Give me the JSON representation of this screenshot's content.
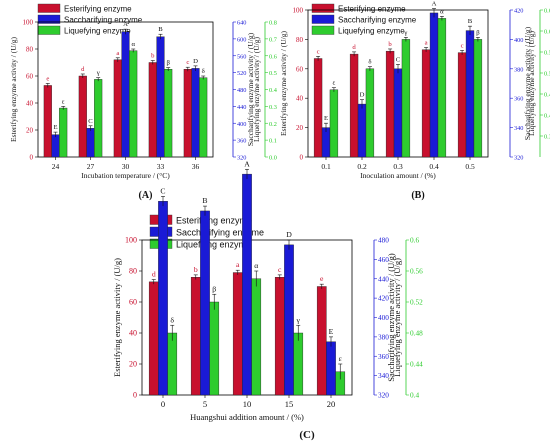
{
  "panels": [
    {
      "id": "A",
      "label": "(A)",
      "xlabel": "Incubation temperature / (°C)",
      "ylabel_left": "Esterifying enzyme activity / (U/g)",
      "ylabel_mid": "Saccharifying enzyme activity / (U/g)",
      "ylabel_right": "Liquefying enzyme activity / (U/g)"
    },
    {
      "id": "B",
      "label": "(B)",
      "xlabel": "Inoculation amount / (%)",
      "ylabel_left": "Esterifying enzyme activity / (U/g)",
      "ylabel_mid": "Saccharifying enzyme activity / (U/g)",
      "ylabel_right": "Liquefying enzyme activity / (U/g)"
    },
    {
      "id": "C",
      "label": "(C)",
      "xlabel": "Huangshui addition amount / (%)",
      "ylabel_left": "Esterifying enzyme activity / (U/g)",
      "ylabel_mid": "Saccharifying enzyme activity / (U/g)",
      "ylabel_right": "Liquefying enzyme activity / (U/g)"
    }
  ],
  "colors": {
    "esterifying": "#c8102e",
    "saccharifying": "#1a1ad6",
    "liquefying": "#2ecc2e",
    "axis_left": "#c8102e",
    "axis_mid": "#1a1ad6",
    "axis_right": "#2ecc2e"
  },
  "chart_data": [
    {
      "type": "bar",
      "panel": "A",
      "categories": [
        "24",
        "27",
        "30",
        "33",
        "36"
      ],
      "legend": [
        "Esterifying enzyme",
        "Saccharifying enzyme",
        "Liquefying enzyme"
      ],
      "series": [
        {
          "name": "Esterifying enzyme",
          "axis": "left",
          "values": [
            53,
            60,
            72,
            70,
            65
          ],
          "errors": [
            1.5,
            1.5,
            1.5,
            1.5,
            1.5
          ],
          "letters": [
            "e",
            "d",
            "a",
            "b",
            "c"
          ]
        },
        {
          "name": "Saccharifying enzyme",
          "axis": "mid",
          "values": [
            373,
            388,
            617,
            605,
            530
          ],
          "errors": [
            6,
            6,
            6,
            6,
            6
          ],
          "letters": [
            "E",
            "C",
            "A",
            "B",
            "D"
          ]
        },
        {
          "name": "Liquefying enzyme",
          "axis": "right",
          "values": [
            0.29,
            0.46,
            0.63,
            0.52,
            0.47
          ],
          "errors": [
            0.01,
            0.01,
            0.01,
            0.01,
            0.01
          ],
          "letters": [
            "ε",
            "γ",
            "α",
            "β",
            "δ"
          ]
        }
      ],
      "axes": {
        "left": {
          "min": 0,
          "max": 100,
          "ticks": [
            0,
            20,
            40,
            60,
            80,
            100
          ]
        },
        "mid": {
          "min": 320,
          "max": 640,
          "ticks": [
            320,
            360,
            400,
            440,
            480,
            520,
            560,
            600,
            640
          ]
        },
        "right": {
          "min": 0.0,
          "max": 0.8,
          "ticks": [
            0.0,
            0.1,
            0.2,
            0.3,
            0.4,
            0.5,
            0.6,
            0.7,
            0.8
          ]
        }
      }
    },
    {
      "type": "bar",
      "panel": "B",
      "categories": [
        "0.1",
        "0.2",
        "0.3",
        "0.4",
        "0.5"
      ],
      "legend": [
        "Esterifying enzyme",
        "Saccharifying enzyme",
        "Liquefying enzyme"
      ],
      "series": [
        {
          "name": "Esterifying enzyme",
          "axis": "left",
          "values": [
            67,
            70,
            72,
            73,
            71
          ],
          "errors": [
            1.5,
            1.5,
            1.5,
            1.5,
            1.5
          ],
          "letters": [
            "c",
            "d",
            "b",
            "a",
            "c"
          ]
        },
        {
          "name": "Saccharifying enzyme",
          "axis": "mid",
          "values": [
            340,
            356,
            380,
            418,
            406
          ],
          "errors": [
            3,
            3,
            3,
            3,
            3
          ],
          "letters": [
            "E",
            "D",
            "C",
            "A",
            "B"
          ]
        },
        {
          "name": "Liquefying enzyme",
          "axis": "right",
          "values": [
            0.46,
            0.51,
            0.58,
            0.63,
            0.58
          ],
          "errors": [
            0.005,
            0.005,
            0.005,
            0.005,
            0.005
          ],
          "letters": [
            "ε",
            "δ",
            "γ",
            "α",
            "β"
          ]
        }
      ],
      "axes": {
        "left": {
          "min": 0,
          "max": 100,
          "ticks": [
            0,
            20,
            40,
            60,
            80,
            100
          ]
        },
        "mid": {
          "min": 320,
          "max": 420,
          "ticks": [
            320,
            340,
            360,
            380,
            400,
            420
          ]
        },
        "right": {
          "min": 0.3,
          "max": 0.65,
          "ticks": [
            0.35,
            0.4,
            0.45,
            0.5,
            0.55,
            0.6,
            0.65
          ]
        }
      }
    },
    {
      "type": "bar",
      "panel": "C",
      "categories": [
        "0",
        "5",
        "10",
        "15",
        "20"
      ],
      "legend": [
        "Esterifying enzyme",
        "Saccharifying enzyme",
        "Liquefying enzyme"
      ],
      "series": [
        {
          "name": "Esterifying enzyme",
          "axis": "left",
          "values": [
            73,
            76,
            79,
            76,
            70
          ],
          "errors": [
            1.5,
            1.5,
            1.5,
            1.5,
            1.5
          ],
          "letters": [
            "d",
            "b",
            "a",
            "c",
            "e"
          ]
        },
        {
          "name": "Saccharifying enzyme",
          "axis": "mid",
          "values": [
            520,
            510,
            548,
            475,
            375
          ],
          "errors": [
            5,
            5,
            5,
            5,
            5
          ],
          "letters": [
            "C",
            "B",
            "A",
            "D",
            "E"
          ]
        },
        {
          "name": "Liquefying enzyme",
          "axis": "right",
          "values": [
            0.48,
            0.52,
            0.55,
            0.48,
            0.43
          ],
          "errors": [
            0.01,
            0.01,
            0.01,
            0.01,
            0.01
          ],
          "letters": [
            "δ",
            "β",
            "α",
            "γ",
            "ε"
          ]
        }
      ],
      "axes": {
        "left": {
          "min": 0,
          "max": 100,
          "ticks": [
            0,
            20,
            40,
            60,
            80,
            100
          ]
        },
        "mid": {
          "min": 320,
          "max": 480,
          "ticks": [
            320,
            340,
            360,
            380,
            400,
            420,
            440,
            460,
            480
          ]
        },
        "right": {
          "min": 0.4,
          "max": 0.6,
          "ticks": [
            0.4,
            0.44,
            0.48,
            0.52,
            0.56,
            0.6
          ]
        }
      }
    }
  ]
}
